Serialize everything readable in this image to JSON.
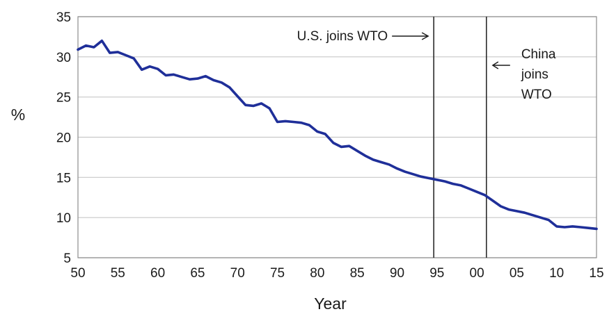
{
  "chart_data": {
    "type": "line",
    "title": "",
    "xlabel": "Year",
    "ylabel": "%",
    "xlim": [
      1950,
      2015
    ],
    "ylim": [
      5,
      35
    ],
    "grid": true,
    "x_ticks": [
      {
        "value": 1950,
        "label": "50"
      },
      {
        "value": 1955,
        "label": "55"
      },
      {
        "value": 1960,
        "label": "60"
      },
      {
        "value": 1965,
        "label": "65"
      },
      {
        "value": 1970,
        "label": "70"
      },
      {
        "value": 1975,
        "label": "75"
      },
      {
        "value": 1980,
        "label": "80"
      },
      {
        "value": 1985,
        "label": "85"
      },
      {
        "value": 1990,
        "label": "90"
      },
      {
        "value": 1995,
        "label": "95"
      },
      {
        "value": 2000,
        "label": "00"
      },
      {
        "value": 2005,
        "label": "05"
      },
      {
        "value": 2010,
        "label": "10"
      },
      {
        "value": 2015,
        "label": "15"
      }
    ],
    "y_ticks": [
      {
        "value": 5,
        "label": "5"
      },
      {
        "value": 10,
        "label": "10"
      },
      {
        "value": 15,
        "label": "15"
      },
      {
        "value": 20,
        "label": "20"
      },
      {
        "value": 25,
        "label": "25"
      },
      {
        "value": 30,
        "label": "30"
      },
      {
        "value": 35,
        "label": "35"
      }
    ],
    "series": [
      {
        "color": "#1f2f99",
        "x": [
          1950,
          1951,
          1952,
          1953,
          1954,
          1955,
          1956,
          1957,
          1958,
          1959,
          1960,
          1961,
          1962,
          1963,
          1964,
          1965,
          1966,
          1967,
          1968,
          1969,
          1970,
          1971,
          1972,
          1973,
          1974,
          1975,
          1976,
          1977,
          1978,
          1979,
          1980,
          1981,
          1982,
          1983,
          1984,
          1985,
          1986,
          1987,
          1988,
          1989,
          1990,
          1991,
          1992,
          1993,
          1994,
          1995,
          1996,
          1997,
          1998,
          1999,
          2000,
          2001,
          2002,
          2003,
          2004,
          2005,
          2006,
          2007,
          2008,
          2009,
          2010,
          2011,
          2012,
          2013,
          2014,
          2015
        ],
        "y": [
          30.9,
          31.4,
          31.2,
          32.0,
          30.5,
          30.6,
          30.2,
          29.8,
          28.4,
          28.8,
          28.5,
          27.7,
          27.8,
          27.5,
          27.2,
          27.3,
          27.6,
          27.1,
          26.8,
          26.2,
          25.1,
          24.0,
          23.9,
          24.2,
          23.6,
          21.9,
          22.0,
          21.9,
          21.8,
          21.5,
          20.7,
          20.4,
          19.3,
          18.8,
          18.9,
          18.3,
          17.7,
          17.2,
          16.9,
          16.6,
          16.1,
          15.7,
          15.4,
          15.1,
          14.9,
          14.7,
          14.5,
          14.2,
          14.0,
          13.6,
          13.2,
          12.8,
          12.1,
          11.4,
          11.0,
          10.8,
          10.6,
          10.3,
          10.0,
          9.7,
          8.9,
          8.8,
          8.9,
          8.8,
          8.7,
          8.6
        ]
      }
    ],
    "reference_lines": [
      {
        "x": 1994.6,
        "label": "U.S. joins WTO"
      },
      {
        "x": 2001.2,
        "label_lines": [
          "China",
          "joins",
          "WTO"
        ]
      }
    ]
  }
}
